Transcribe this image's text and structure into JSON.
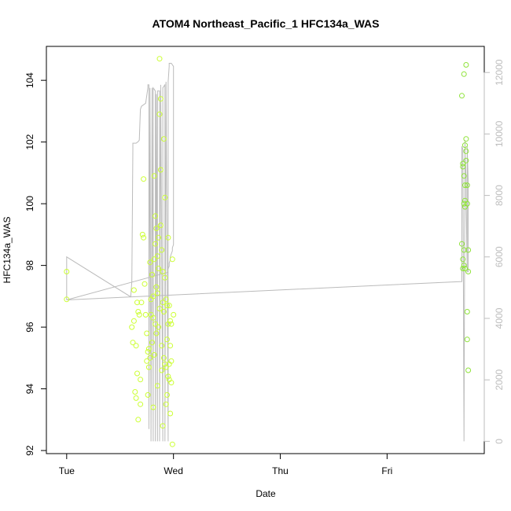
{
  "chart_data": {
    "type": "scatter",
    "title": "ATOM4 Northeast_Pacific_1 HFC134a_WAS",
    "xlabel": "Date",
    "ylabel": "HFC134a_WAS",
    "x_ticks": [
      "Tue",
      "Wed",
      "Thu",
      "Fri"
    ],
    "x_tick_positions_days": [
      0,
      1,
      2,
      3
    ],
    "x_range_days": [
      -0.19,
      3.91
    ],
    "y_range": [
      91.9,
      105.1
    ],
    "y_ticks": [
      "92",
      "94",
      "96",
      "98",
      "100",
      "102",
      "104"
    ],
    "y_tick_values": [
      92,
      94,
      96,
      98,
      100,
      102,
      104
    ],
    "y2_range": [
      -400,
      12850
    ],
    "y2_ticks": [
      "0",
      "2000",
      "4000",
      "6000",
      "8000",
      "10000",
      "12000"
    ],
    "y2_tick_values": [
      0,
      2000,
      4000,
      6000,
      8000,
      10000,
      12000
    ],
    "grid": false,
    "colors": {
      "points_early": "#ccff33",
      "points_late": "#8fe33a",
      "altitude_line": "#bbbbbb",
      "axis": "#000000",
      "right_axis": "#bdbdbd"
    },
    "series": [
      {
        "kind": "points",
        "color_key": "points_early",
        "x": [
          0.0,
          0.0,
          0.61,
          0.62,
          0.63,
          0.63,
          0.64,
          0.65,
          0.65,
          0.66,
          0.66,
          0.67,
          0.67,
          0.68,
          0.69,
          0.69,
          0.7,
          0.71,
          0.72,
          0.72,
          0.73,
          0.74,
          0.75,
          0.75,
          0.76,
          0.76,
          0.77,
          0.77,
          0.78,
          0.78,
          0.79,
          0.79,
          0.8,
          0.8,
          0.81,
          0.81,
          0.81,
          0.82,
          0.82,
          0.82,
          0.83,
          0.83,
          0.83,
          0.84,
          0.84,
          0.84,
          0.85,
          0.85,
          0.85,
          0.86,
          0.86,
          0.86,
          0.87,
          0.87,
          0.87,
          0.88,
          0.88,
          0.88,
          0.89,
          0.89,
          0.89,
          0.9,
          0.9,
          0.9,
          0.91,
          0.91,
          0.91,
          0.92,
          0.92,
          0.92,
          0.93,
          0.93,
          0.93,
          0.94,
          0.94,
          0.94,
          0.95,
          0.95,
          0.95,
          0.96,
          0.96,
          0.96,
          0.97,
          0.97,
          0.97,
          0.98,
          0.98,
          0.98,
          0.99,
          0.99,
          1.0
        ],
        "y": [
          97.8,
          96.9,
          96.0,
          95.5,
          97.2,
          96.2,
          93.9,
          93.7,
          95.4,
          96.8,
          94.5,
          96.5,
          93.0,
          96.4,
          94.3,
          93.5,
          96.8,
          99.0,
          98.9,
          100.8,
          97.4,
          96.4,
          95.8,
          94.9,
          95.2,
          93.8,
          95.3,
          94.7,
          98.1,
          95.0,
          96.9,
          96.4,
          97.7,
          95.5,
          97.0,
          96.3,
          93.4,
          100.9,
          98.2,
          95.1,
          98.7,
          99.6,
          96.1,
          99.2,
          97.3,
          95.8,
          98.3,
          97.1,
          94.1,
          98.9,
          97.9,
          96.0,
          104.7,
          102.9,
          96.6,
          103.4,
          101.1,
          99.3,
          98.5,
          95.4,
          94.6,
          97.8,
          96.8,
          92.8,
          102.1,
          96.5,
          95.0,
          100.2,
          97.6,
          94.8,
          96.9,
          94.7,
          93.5,
          96.7,
          93.8,
          95.6,
          98.9,
          96.1,
          94.4,
          96.7,
          94.8,
          94.3,
          96.2,
          93.2,
          95.4,
          96.1,
          94.9,
          94.2,
          98.2,
          92.2,
          96.4
        ]
      },
      {
        "kind": "points",
        "color_key": "points_late",
        "x": [
          3.7,
          3.7,
          3.71,
          3.71,
          3.71,
          3.71,
          3.72,
          3.72,
          3.72,
          3.72,
          3.72,
          3.73,
          3.73,
          3.73,
          3.73,
          3.73,
          3.74,
          3.74,
          3.74,
          3.74,
          3.75,
          3.75,
          3.75,
          3.75,
          3.76,
          3.76,
          3.76
        ],
        "y": [
          103.5,
          98.7,
          101.3,
          101.2,
          98.2,
          97.9,
          104.2,
          100.9,
          100.0,
          98.5,
          98.0,
          101.9,
          100.6,
          100.1,
          99.9,
          97.9,
          104.5,
          102.1,
          101.7,
          101.4,
          100.6,
          100.0,
          96.5,
          95.6,
          97.8,
          98.5,
          94.6
        ]
      },
      {
        "kind": "line",
        "axis": "right",
        "color_key": "altitude_line",
        "x": [
          0.0,
          0.0,
          0.6,
          0.61,
          0.62,
          0.62,
          0.63,
          0.65,
          0.67,
          0.68,
          0.69,
          0.7,
          0.74,
          0.76,
          0.76,
          0.77,
          0.77,
          0.78,
          0.79,
          0.8,
          0.8,
          0.81,
          0.81,
          0.83,
          0.83,
          0.84,
          0.84,
          0.85,
          0.85,
          0.87,
          0.87,
          0.88,
          0.88,
          0.9,
          0.9,
          0.92,
          0.92,
          0.93,
          0.93,
          0.95,
          0.95,
          0.96,
          0.96,
          0.97,
          0.98,
          1.0,
          1.0,
          0.99,
          0.99,
          0.98,
          0.97,
          0.97,
          0.96,
          0.96,
          0.95,
          0.95,
          0.0,
          0.0,
          3.7,
          3.7,
          3.71,
          3.72,
          3.73,
          3.73,
          3.74,
          3.74,
          3.75,
          3.75,
          3.76,
          3.76
        ],
        "y": [
          4600,
          6000,
          4700,
          5200,
          9500,
          9700,
          9700,
          9700,
          9750,
          9800,
          10800,
          10900,
          11000,
          11500,
          11600,
          11600,
          400,
          11500,
          0,
          11500,
          11000,
          0,
          11500,
          11400,
          0,
          11300,
          11300,
          0,
          11400,
          11400,
          0,
          11600,
          11500,
          0,
          11500,
          11600,
          0,
          11600,
          11700,
          0,
          11700,
          12200,
          12300,
          12300,
          12300,
          12200,
          6400,
          6300,
          6200,
          6100,
          6000,
          5900,
          5800,
          5700,
          5600,
          5500,
          4600,
          4600,
          5200,
          9600,
          9500,
          0,
          9800,
          9400,
          8500,
          7800,
          5500,
          9600,
          8400,
          5500
        ]
      }
    ]
  }
}
